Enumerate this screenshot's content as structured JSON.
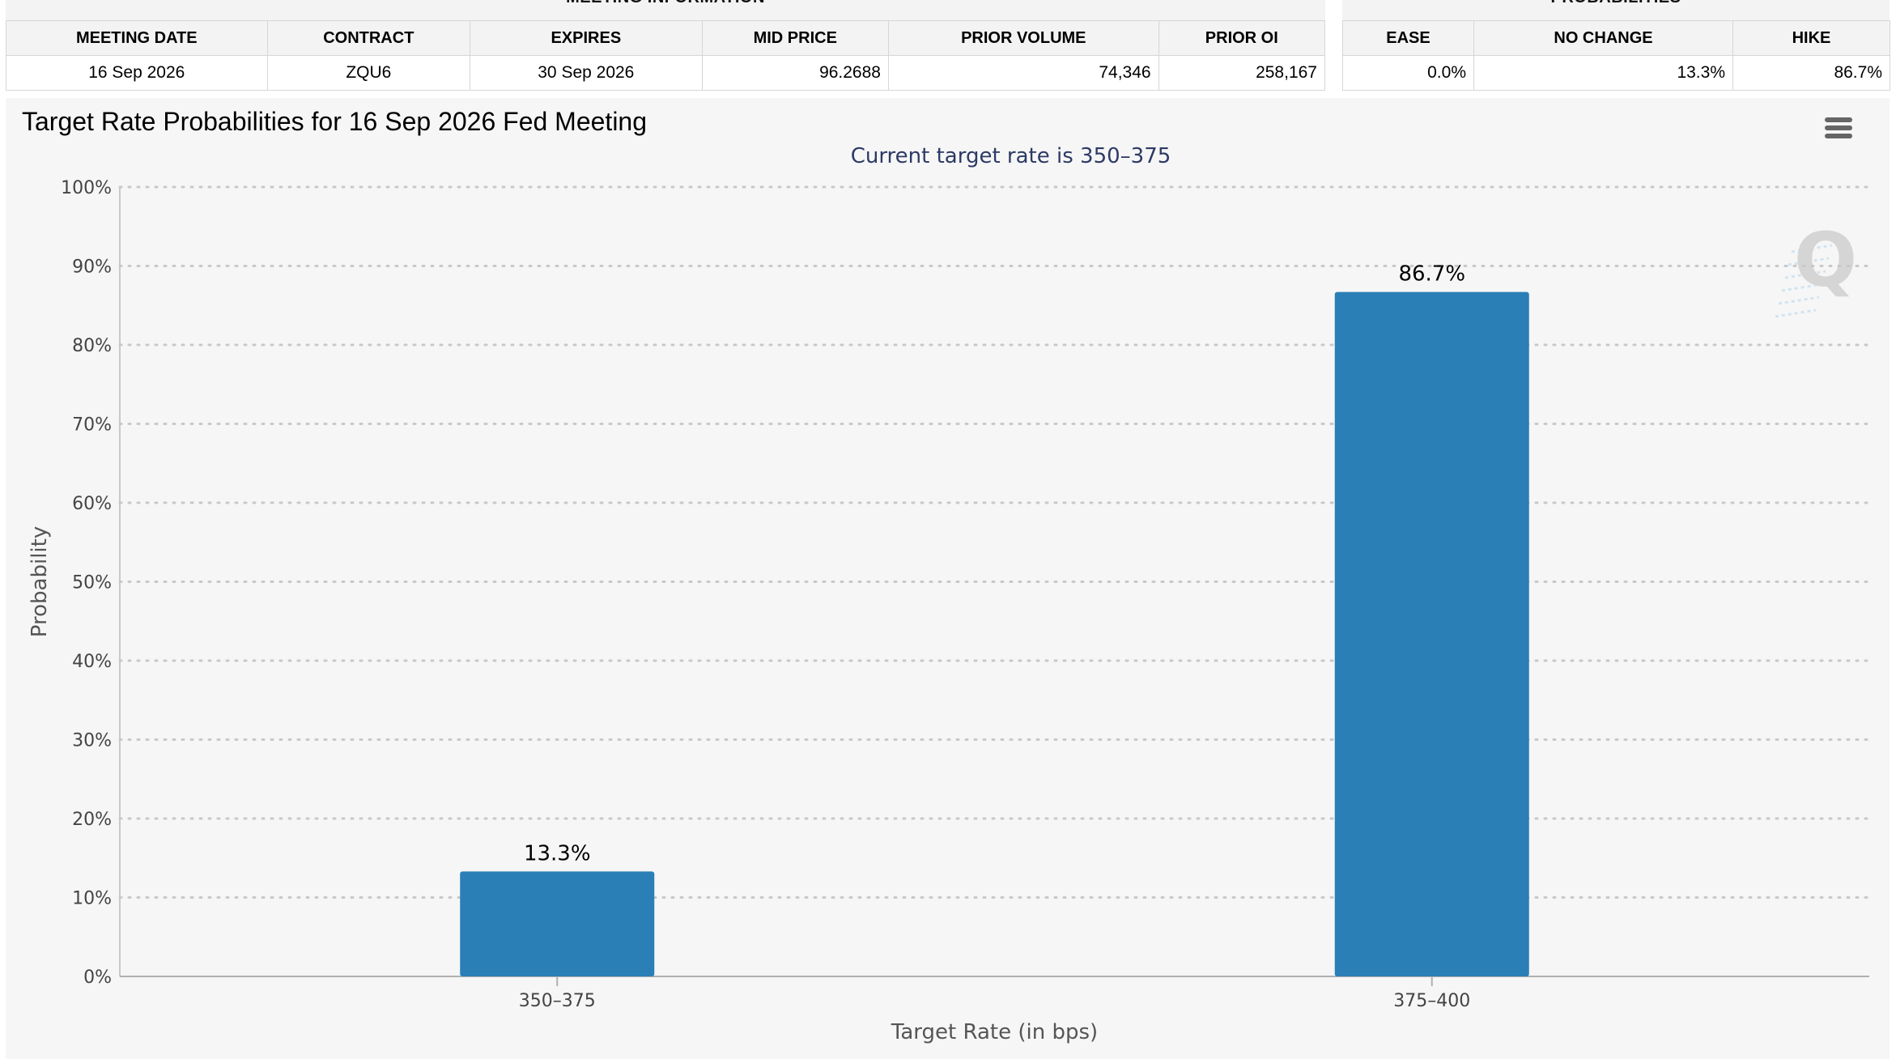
{
  "meeting_info": {
    "title": "MEETING INFORMATION",
    "headers": [
      "MEETING DATE",
      "CONTRACT",
      "EXPIRES",
      "MID PRICE",
      "PRIOR VOLUME",
      "PRIOR OI"
    ],
    "row": [
      "16 Sep 2026",
      "ZQU6",
      "30 Sep 2026",
      "96.2688",
      "74,346",
      "258,167"
    ]
  },
  "probabilities": {
    "title": "PROBABILITIES",
    "headers": [
      "EASE",
      "NO CHANGE",
      "HIKE"
    ],
    "row": [
      "0.0%",
      "13.3%",
      "86.7%"
    ]
  },
  "menu_icon": "hamburger-menu-icon",
  "watermark_icon": "q-logo-icon",
  "colors": {
    "bar": "#2a7fb7",
    "subtitle": "#2d3a66",
    "grid": "#c8c8c8",
    "axis_text": "#444444"
  },
  "chart_data": {
    "type": "bar",
    "title": "Target Rate Probabilities for 16 Sep 2026 Fed Meeting",
    "subtitle": "Current target rate is 350–375",
    "xlabel": "Target Rate (in bps)",
    "ylabel": "Probability",
    "categories": [
      "350–375",
      "375–400"
    ],
    "values": [
      13.3,
      86.7
    ],
    "data_labels": [
      "13.3%",
      "86.7%"
    ],
    "ylim": [
      0,
      100
    ],
    "yticks": [
      0,
      10,
      20,
      30,
      40,
      50,
      60,
      70,
      80,
      90,
      100
    ],
    "ytick_labels": [
      "0%",
      "10%",
      "20%",
      "30%",
      "40%",
      "50%",
      "60%",
      "70%",
      "80%",
      "90%",
      "100%"
    ],
    "grid": true,
    "legend": "none"
  }
}
